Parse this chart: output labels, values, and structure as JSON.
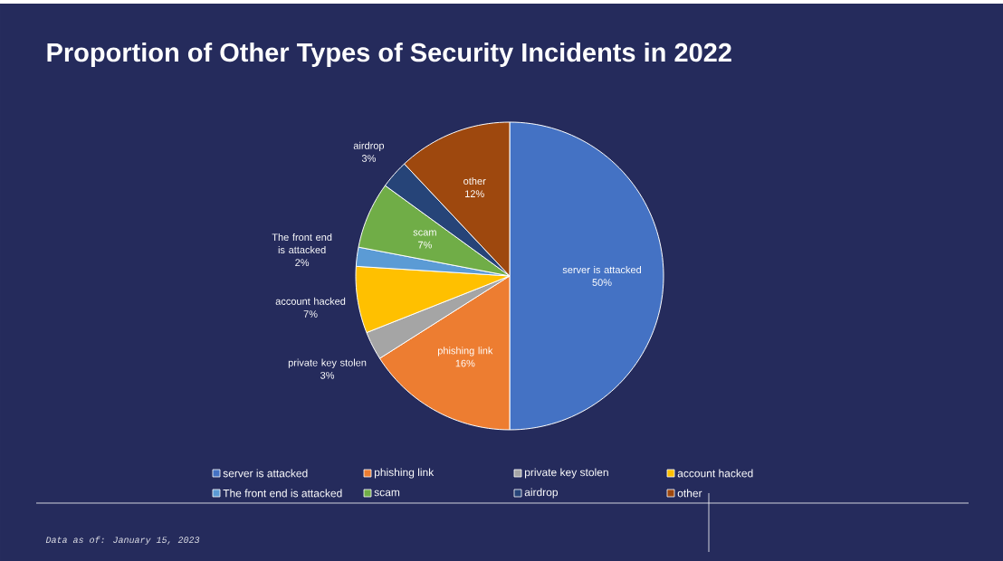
{
  "chart_data": {
    "type": "pie",
    "title": "Proportion of Other Types of Security Incidents in 2022",
    "categories": [
      "server is attacked",
      "phishing link",
      "private key stolen",
      "account hacked",
      "The front end is attacked",
      "scam",
      "airdrop",
      "other"
    ],
    "values": [
      50,
      16,
      3,
      7,
      2,
      7,
      3,
      12
    ],
    "value_labels": [
      "50%",
      "16%",
      "3%",
      "7%",
      "2%",
      "7%",
      "3%",
      "12%"
    ],
    "colors": [
      "#4472c4",
      "#ed7d31",
      "#a5a5a5",
      "#ffc000",
      "#5b9bd5",
      "#70ad47",
      "#264478",
      "#9e480e"
    ],
    "legend": "bottom",
    "annotations": [
      "Data as of: January 15, 2023"
    ]
  }
}
